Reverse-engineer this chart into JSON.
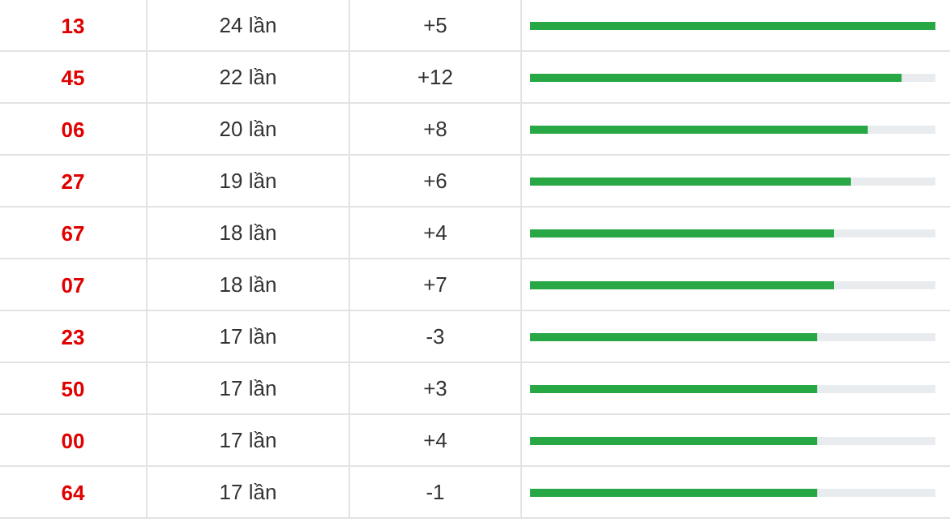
{
  "chart_data": {
    "type": "bar",
    "orientation": "horizontal",
    "tick_labels": "y",
    "categories": [
      "13",
      "45",
      "06",
      "27",
      "67",
      "07",
      "23",
      "50",
      "00",
      "64"
    ],
    "values": [
      24,
      22,
      20,
      19,
      18,
      18,
      17,
      17,
      17,
      17
    ],
    "value_labels": [
      "24 lần",
      "22 lần",
      "20 lần",
      "19 lần",
      "18 lần",
      "18 lần",
      "17 lần",
      "17 lần",
      "17 lần",
      "17 lần"
    ],
    "color": "#28a745",
    "annotations": [
      "+5",
      "+12",
      "+8",
      "+6",
      "+4",
      "+7",
      "-3",
      "+3",
      "+4",
      "-1"
    ]
  }
}
